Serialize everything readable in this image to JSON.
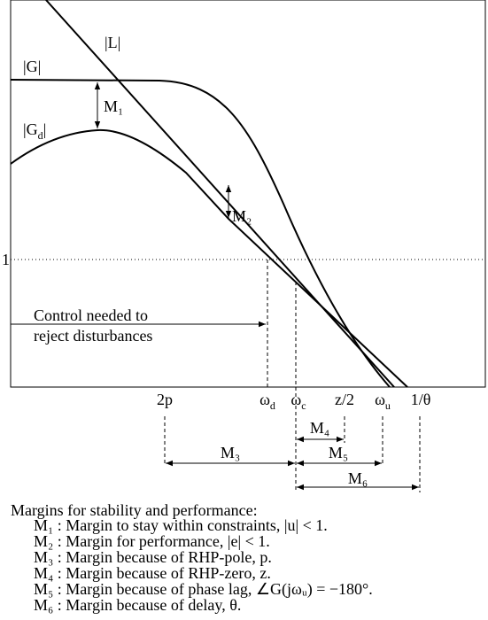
{
  "curves": {
    "L": "|L|",
    "G": "|G|",
    "Gd": {
      "main": "|G",
      "sub": "d",
      "end": "|"
    }
  },
  "plot_margins": {
    "M1": "M₁",
    "M2": "M₂"
  },
  "y_label": "1",
  "note": [
    "Control needed to",
    "reject disturbances"
  ],
  "frequencies": [
    {
      "main": "2p"
    },
    {
      "main": "ω",
      "sub": "d"
    },
    {
      "main": "ω",
      "sub": "c"
    },
    {
      "main": "z/2"
    },
    {
      "main": "ω",
      "sub": "u"
    },
    {
      "main": "1/θ"
    }
  ],
  "range_margins": {
    "M3": "M₃",
    "M4": "M₄",
    "M5": "M₅",
    "M6": "M₆"
  },
  "legend": {
    "title": "Margins for stability and performance:",
    "items": [
      "M₁ : Margin to stay within constraints, |u| < 1.",
      "M₂ : Margin for performance, |e| < 1.",
      "M₃ : Margin because of RHP-pole, p.",
      "M₄ : Margin because of RHP-zero, z.",
      "M₅ : Margin because of phase lag, ∠G(jωᵤ) = −180°.",
      "M₆ : Margin because of delay, θ."
    ]
  }
}
